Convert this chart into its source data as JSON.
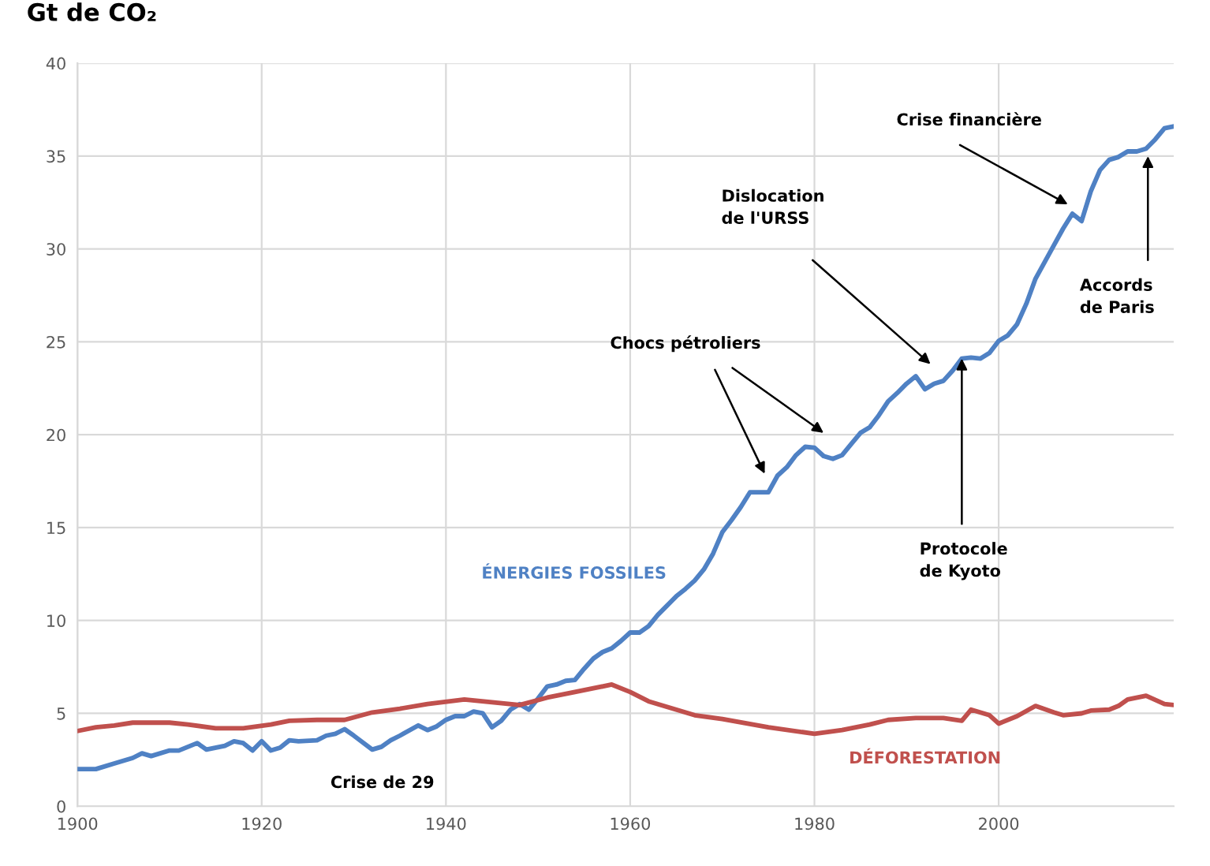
{
  "chart_data": {
    "type": "line",
    "title": "Gt de CO₂",
    "xlim": [
      1900,
      2019
    ],
    "xticks": [
      1900,
      1920,
      1940,
      1960,
      1980,
      2000
    ],
    "ylim": [
      0,
      40
    ],
    "yticks": [
      0,
      5,
      10,
      15,
      20,
      25,
      30,
      35,
      40
    ],
    "grid": true,
    "legend": false,
    "line_style": "solid",
    "marker": "none",
    "series": [
      {
        "name": "ÉNERGIES FOSSILES",
        "color": "#4f81c4",
        "x": [
          1900,
          1902,
          1904,
          1906,
          1907,
          1908,
          1910,
          1911,
          1913,
          1914,
          1916,
          1917,
          1918,
          1919,
          1920,
          1921,
          1922,
          1923,
          1924,
          1926,
          1927,
          1928,
          1929,
          1930,
          1932,
          1933,
          1934,
          1935,
          1937,
          1938,
          1939,
          1940,
          1941,
          1942,
          1943,
          1944,
          1945,
          1946,
          1947,
          1948,
          1949,
          1950,
          1951,
          1952,
          1953,
          1954,
          1955,
          1956,
          1957,
          1958,
          1959,
          1960,
          1961,
          1962,
          1963,
          1964,
          1965,
          1966,
          1967,
          1968,
          1969,
          1970,
          1971,
          1972,
          1973,
          1974,
          1975,
          1976,
          1977,
          1978,
          1979,
          1980,
          1981,
          1982,
          1983,
          1984,
          1985,
          1986,
          1987,
          1988,
          1989,
          1990,
          1991,
          1992,
          1993,
          1994,
          1995,
          1996,
          1997,
          1998,
          1999,
          2000,
          2001,
          2002,
          2003,
          2004,
          2005,
          2006,
          2007,
          2008,
          2009,
          2010,
          2011,
          2012,
          2013,
          2014,
          2015,
          2016,
          2017,
          2018,
          2019
        ],
        "values": [
          2.0,
          2.0,
          2.3,
          2.6,
          2.85,
          2.7,
          3.0,
          3.0,
          3.4,
          3.05,
          3.25,
          3.5,
          3.4,
          3.0,
          3.5,
          3.0,
          3.15,
          3.55,
          3.5,
          3.55,
          3.8,
          3.9,
          4.15,
          3.8,
          3.05,
          3.2,
          3.55,
          3.8,
          4.35,
          4.1,
          4.3,
          4.65,
          4.85,
          4.85,
          5.1,
          5.0,
          4.25,
          4.6,
          5.2,
          5.5,
          5.2,
          5.8,
          6.45,
          6.55,
          6.75,
          6.8,
          7.4,
          7.95,
          8.3,
          8.5,
          8.9,
          9.35,
          9.35,
          9.7,
          10.3,
          10.8,
          11.3,
          11.7,
          12.15,
          12.75,
          13.6,
          14.75,
          15.4,
          16.1,
          16.9,
          16.9,
          16.9,
          17.8,
          18.25,
          18.9,
          19.35,
          19.3,
          18.85,
          18.7,
          18.9,
          19.5,
          20.1,
          20.4,
          21.05,
          21.8,
          22.25,
          22.75,
          23.15,
          22.45,
          22.75,
          22.9,
          23.45,
          24.1,
          24.15,
          24.1,
          24.4,
          25.05,
          25.35,
          25.95,
          27.05,
          28.4,
          29.3,
          30.2,
          31.1,
          31.9,
          31.5,
          33.1,
          34.25,
          34.8,
          34.95,
          35.25,
          35.25,
          35.4,
          35.9,
          36.5,
          36.6
        ]
      },
      {
        "name": "DÉFORESTATION",
        "color": "#c0504d",
        "x": [
          1900,
          1902,
          1904,
          1906,
          1910,
          1912,
          1915,
          1918,
          1921,
          1923,
          1926,
          1929,
          1932,
          1935,
          1938,
          1942,
          1945,
          1948,
          1951,
          1954,
          1956,
          1958,
          1960,
          1962,
          1965,
          1967,
          1970,
          1975,
          1980,
          1983,
          1986,
          1988,
          1991,
          1994,
          1996,
          1997,
          1999,
          2000,
          2002,
          2004,
          2006,
          2007,
          2009,
          2010,
          2012,
          2013,
          2014,
          2016,
          2018,
          2019
        ],
        "values": [
          4.05,
          4.25,
          4.35,
          4.5,
          4.5,
          4.4,
          4.2,
          4.2,
          4.4,
          4.6,
          4.65,
          4.65,
          5.05,
          5.25,
          5.5,
          5.75,
          5.6,
          5.45,
          5.85,
          6.15,
          6.35,
          6.55,
          6.15,
          5.65,
          5.2,
          4.9,
          4.7,
          4.25,
          3.9,
          4.1,
          4.4,
          4.65,
          4.75,
          4.75,
          4.6,
          5.2,
          4.9,
          4.45,
          4.85,
          5.4,
          5.05,
          4.9,
          5.0,
          5.15,
          5.2,
          5.4,
          5.75,
          5.95,
          5.5,
          5.45
        ]
      }
    ],
    "annotations": [
      "Crise de 29",
      "Chocs pétroliers",
      "Dislocation\nde l'URSS",
      "Crise financière",
      {
        "text": "Protocole\nde Kyoto",
        "x": 1996,
        "y": 24.1
      },
      "Accords\nde Paris"
    ]
  }
}
